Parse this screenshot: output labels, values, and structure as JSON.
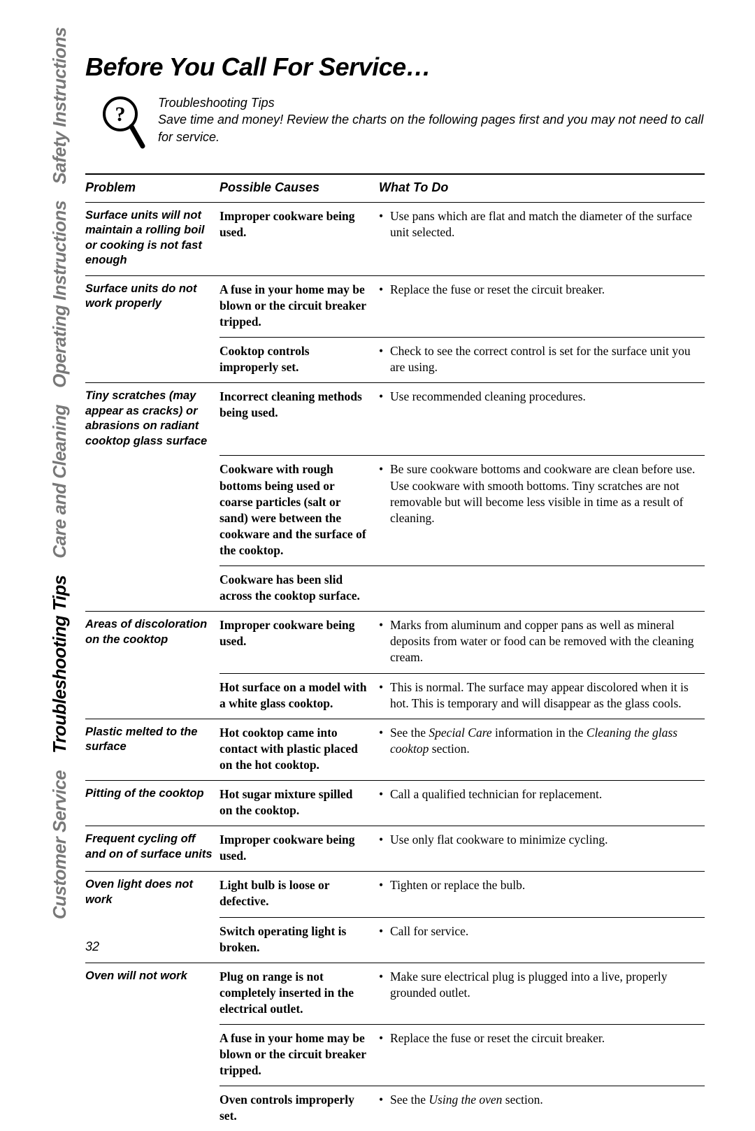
{
  "page_title": "Before You Call For Service…",
  "intro": {
    "heading": "Troubleshooting Tips",
    "body": "Save time and money! Review the charts on the following pages first and you may not need to call for service."
  },
  "tabs": [
    {
      "label": "Safety Instructions",
      "active": false
    },
    {
      "label": "Operating Instructions",
      "active": false
    },
    {
      "label": "Care and Cleaning",
      "active": false
    },
    {
      "label": "Troubleshooting Tips",
      "active": true
    },
    {
      "label": "Customer Service",
      "active": false
    }
  ],
  "headers": {
    "problem": "Problem",
    "causes": "Possible Causes",
    "action": "What To Do"
  },
  "rows": [
    {
      "sep": "problem",
      "problem": "Surface units will not maintain a rolling boil or cooking is not fast enough",
      "cause": "Improper cookware being used.",
      "action": "Use pans which are flat and match the diameter of the surface unit selected."
    },
    {
      "sep": "problem",
      "problem": "Surface units do not work properly",
      "cause": "A fuse in your home may be blown or the circuit breaker tripped.",
      "action": "Replace the fuse or reset the circuit breaker."
    },
    {
      "sep": "cause",
      "problem": "",
      "cause": "Cooktop controls improperly set.",
      "action": "Check to see the correct control is set for the surface unit you are using."
    },
    {
      "sep": "problem",
      "problem": "Tiny scratches (may appear as cracks) or abrasions on radiant cooktop glass surface",
      "cause": "Incorrect cleaning methods being used.",
      "action": "Use recommended cleaning procedures."
    },
    {
      "sep": "cause",
      "problem": "",
      "cause": "Cookware with rough bottoms being used or coarse particles (salt or sand) were between the cookware and the surface of the cooktop.",
      "action": "Be sure cookware bottoms and cookware are clean before use. Use cookware with smooth bottoms. Tiny scratches are not removable but will become less visible in time as a result of cleaning."
    },
    {
      "sep": "cause",
      "problem": "",
      "cause": "Cookware has been slid across the cooktop surface.",
      "action": ""
    },
    {
      "sep": "problem",
      "problem": "Areas of discoloration on the cooktop",
      "cause": "Improper cookware being used.",
      "action": "Marks from aluminum and copper pans as well as mineral deposits from water or food can be removed with the cleaning cream."
    },
    {
      "sep": "cause",
      "problem": "",
      "cause": "Hot surface on a model with a white glass cooktop.",
      "action": "This is normal. The surface may appear discolored when it is hot. This is temporary and will disappear as the glass cools."
    },
    {
      "sep": "problem",
      "problem": "Plastic melted to the surface",
      "cause": "Hot cooktop came into contact with plastic placed on the hot cooktop.",
      "action": "See the <em>Special Care</em> information in the <em>Cleaning the glass cooktop</em> section."
    },
    {
      "sep": "problem",
      "problem": "Pitting of the cooktop",
      "cause": "Hot sugar mixture spilled on the cooktop.",
      "action": "Call a qualified technician for replacement."
    },
    {
      "sep": "problem",
      "problem": "Frequent cycling off and on of surface units",
      "cause": "Improper cookware being used.",
      "action": "Use only flat cookware to minimize cycling."
    },
    {
      "sep": "problem",
      "problem": "Oven light does not work",
      "cause": "Light bulb is loose or defective.",
      "action": "Tighten or replace the bulb."
    },
    {
      "sep": "cause",
      "problem": "",
      "cause": "Switch operating light is broken.",
      "action": "Call for service."
    },
    {
      "sep": "problem",
      "problem": "Oven will not work",
      "cause": "Plug on range is not completely inserted in the electrical outlet.",
      "action": "Make sure electrical plug is plugged into a live, properly grounded outlet."
    },
    {
      "sep": "cause",
      "problem": "",
      "cause": "A fuse in your home may be blown or the circuit breaker tripped.",
      "action": "Replace the fuse or reset the circuit breaker."
    },
    {
      "sep": "cause",
      "problem": "",
      "cause": "Oven controls improperly set.",
      "action": "See the <em>Using the oven</em> section."
    }
  ],
  "page_number": "32",
  "colors": {
    "text": "#000000",
    "faded": "#787878",
    "bg": "#ffffff"
  }
}
